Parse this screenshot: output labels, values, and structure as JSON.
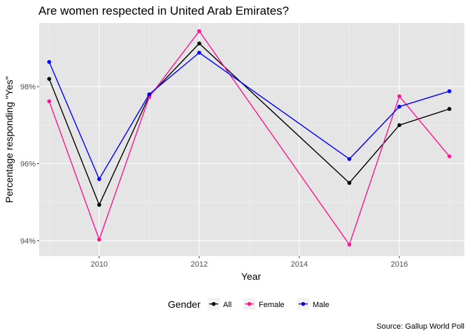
{
  "chart_data": {
    "type": "line",
    "title": "Are women respected in United Arab Emirates?",
    "xlabel": "Year",
    "ylabel": "Percentage responding \"Yes\"",
    "caption": "Source: Gallup World Poll",
    "xlim": [
      2008.8,
      2017.3
    ],
    "ylim": [
      93.6,
      99.65
    ],
    "x_ticks": [
      2010,
      2012,
      2014,
      2016
    ],
    "x_tick_labels": [
      "2010",
      "2012",
      "2014",
      "2016"
    ],
    "y_ticks": [
      94,
      96,
      98
    ],
    "y_tick_labels": [
      "94%",
      "96%",
      "98%"
    ],
    "grid": true,
    "background": "#e5e5e5",
    "legend": {
      "title": "Gender",
      "position": "bottom"
    },
    "series": [
      {
        "name": "All",
        "color": "#000000",
        "x": [
          2009,
          2010,
          2011,
          2012,
          2015,
          2016,
          2017
        ],
        "y": [
          98.2,
          94.93,
          97.76,
          99.12,
          95.5,
          97.0,
          97.42
        ]
      },
      {
        "name": "Female",
        "color": "#ff1493",
        "x": [
          2009,
          2010,
          2011,
          2012,
          2015,
          2016,
          2017
        ],
        "y": [
          97.62,
          94.03,
          97.73,
          99.44,
          93.9,
          97.75,
          96.19
        ]
      },
      {
        "name": "Male",
        "color": "#0000ff",
        "x": [
          2009,
          2010,
          2011,
          2012,
          2015,
          2016,
          2017
        ],
        "y": [
          98.64,
          95.6,
          97.8,
          98.88,
          96.12,
          97.48,
          97.88
        ]
      }
    ]
  }
}
